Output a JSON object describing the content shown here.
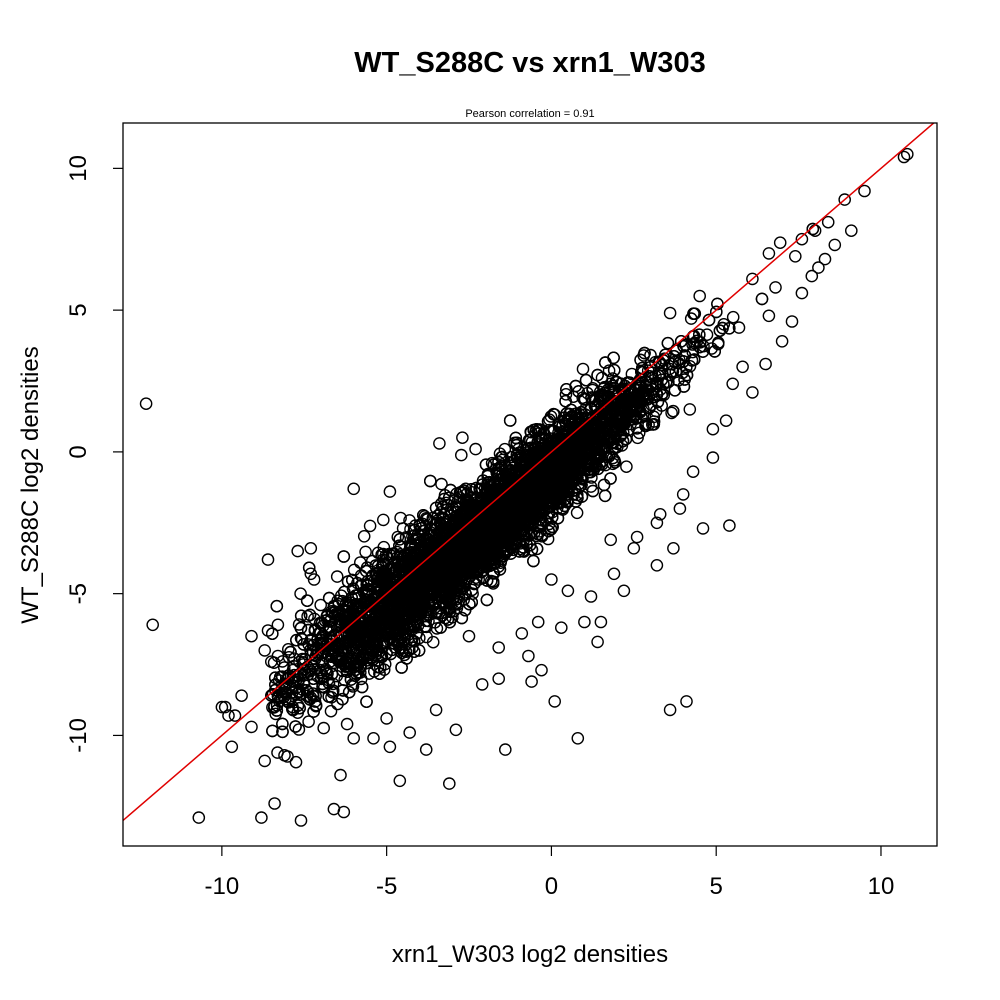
{
  "chart_data": {
    "type": "scatter",
    "title": "WT_S288C vs xrn1_W303",
    "subtitle": "Pearson correlation =  0.91",
    "xlabel": "xrn1_W303 log2 densities",
    "ylabel": "WT_S288C log2 densities",
    "xlim": [
      -13.0,
      11.7
    ],
    "ylim": [
      -13.9,
      11.6
    ],
    "xticks": [
      -10,
      -5,
      0,
      5,
      10
    ],
    "yticks": [
      -10,
      -5,
      0,
      5,
      10
    ],
    "xtick_labels": [
      "-10",
      "-5",
      "0",
      "5",
      "10"
    ],
    "ytick_labels": [
      "-10",
      "-5",
      "0",
      "5",
      "10"
    ],
    "grid": false,
    "legend": "none",
    "marker": "open-circle",
    "marker_color": "#000000",
    "reference_line": {
      "type": "identity",
      "slope": 1,
      "intercept": 0,
      "color": "#e00000"
    },
    "dense_cloud": {
      "description_values": "approximate main body of points along x≈y, slightly below the identity line",
      "centerline": [
        [
          -7.0,
          -7.3
        ],
        [
          -5.0,
          -5.5
        ],
        [
          -3.0,
          -3.6
        ],
        [
          -1.0,
          -1.7
        ],
        [
          1.0,
          0.2
        ],
        [
          3.0,
          2.2
        ],
        [
          5.0,
          4.4
        ],
        [
          7.0,
          6.7
        ],
        [
          8.5,
          8.3
        ]
      ],
      "n_points": 6500
    },
    "points": [
      [
        -12.3,
        1.7
      ],
      [
        -12.1,
        -6.1
      ],
      [
        -10.7,
        -12.9
      ],
      [
        -8.8,
        -12.9
      ],
      [
        -8.4,
        -12.4
      ],
      [
        -7.6,
        -13.0
      ],
      [
        -6.6,
        -12.6
      ],
      [
        -6.3,
        -12.7
      ],
      [
        -6.4,
        -11.4
      ],
      [
        -4.6,
        -11.6
      ],
      [
        -3.1,
        -11.7
      ],
      [
        -1.4,
        -10.5
      ],
      [
        -9.7,
        -10.4
      ],
      [
        -8.7,
        -10.9
      ],
      [
        -8.1,
        -10.7
      ],
      [
        -9.9,
        -9.0
      ],
      [
        -9.6,
        -9.3
      ],
      [
        -9.1,
        -9.7
      ],
      [
        -8.6,
        -3.8
      ],
      [
        -7.7,
        -3.5
      ],
      [
        -7.3,
        -3.4
      ],
      [
        -7.3,
        -4.3
      ],
      [
        -7.2,
        -4.5
      ],
      [
        -8.6,
        -6.3
      ],
      [
        -8.3,
        -6.1
      ],
      [
        -9.1,
        -6.5
      ],
      [
        -4.9,
        -1.4
      ],
      [
        -6.0,
        -1.3
      ],
      [
        -4.5,
        -2.7
      ],
      [
        -5.1,
        -2.4
      ],
      [
        -3.4,
        0.3
      ],
      [
        -2.7,
        0.5
      ],
      [
        -2.3,
        0.1
      ],
      [
        -8.1,
        -8.2
      ],
      [
        -8.5,
        -7.4
      ],
      [
        -8.0,
        -8.8
      ],
      [
        -6.0,
        -10.1
      ],
      [
        -5.4,
        -10.1
      ],
      [
        -4.9,
        -10.4
      ],
      [
        -4.3,
        -9.9
      ],
      [
        -3.8,
        -10.5
      ],
      [
        -2.9,
        -9.8
      ],
      [
        0.1,
        -8.8
      ],
      [
        0.8,
        -10.1
      ],
      [
        3.6,
        -9.1
      ],
      [
        4.1,
        -8.8
      ],
      [
        -0.3,
        -7.7
      ],
      [
        -0.6,
        -8.1
      ],
      [
        1.5,
        -6.0
      ],
      [
        1.4,
        -6.7
      ],
      [
        3.2,
        -4.0
      ],
      [
        2.2,
        -4.9
      ],
      [
        3.7,
        -3.4
      ],
      [
        4.6,
        -2.7
      ],
      [
        5.4,
        -2.6
      ],
      [
        3.2,
        -2.5
      ],
      [
        3.9,
        -2.0
      ],
      [
        2.5,
        -3.4
      ],
      [
        1.8,
        -3.1
      ],
      [
        -1.6,
        -6.9
      ],
      [
        -2.5,
        -6.5
      ],
      [
        -0.9,
        -6.4
      ],
      [
        -0.4,
        -6.0
      ],
      [
        1.0,
        -6.0
      ],
      [
        0.5,
        -4.9
      ],
      [
        0.0,
        -4.5
      ],
      [
        4.9,
        0.8
      ],
      [
        4.2,
        1.5
      ],
      [
        5.5,
        2.4
      ],
      [
        5.8,
        3.0
      ],
      [
        6.6,
        4.8
      ],
      [
        6.8,
        5.8
      ],
      [
        7.4,
        6.9
      ],
      [
        7.9,
        6.2
      ],
      [
        8.3,
        6.8
      ],
      [
        8.0,
        7.8
      ],
      [
        8.9,
        8.9
      ],
      [
        9.5,
        9.2
      ],
      [
        10.7,
        10.4
      ],
      [
        10.8,
        10.5
      ],
      [
        8.4,
        8.1
      ],
      [
        7.6,
        7.5
      ],
      [
        6.1,
        6.1
      ],
      [
        6.6,
        7.0
      ],
      [
        4.5,
        5.5
      ],
      [
        3.6,
        4.9
      ],
      [
        2.8,
        3.4
      ],
      [
        1.8,
        2.4
      ],
      [
        1.2,
        1.5
      ],
      [
        0.4,
        1.1
      ],
      [
        -0.2,
        0.6
      ],
      [
        -1.0,
        0.1
      ],
      [
        -1.8,
        -0.4
      ],
      [
        -2.6,
        -1.3
      ],
      [
        -3.2,
        -1.8
      ],
      [
        -4.0,
        -2.6
      ],
      [
        -5.1,
        -3.6
      ],
      [
        -5.8,
        -3.9
      ],
      [
        -6.5,
        -4.4
      ],
      [
        -7.0,
        -5.4
      ],
      [
        -7.4,
        -5.8
      ],
      [
        -8.3,
        -7.2
      ],
      [
        -8.7,
        -7.0
      ],
      [
        -9.4,
        -8.6
      ],
      [
        -10.0,
        -9.0
      ],
      [
        -9.8,
        -9.3
      ],
      [
        -7.7,
        -9.2
      ],
      [
        -6.2,
        -9.6
      ],
      [
        -5.0,
        -9.4
      ],
      [
        -3.5,
        -9.1
      ],
      [
        -2.1,
        -8.2
      ],
      [
        -1.6,
        -8.0
      ],
      [
        -0.7,
        -7.2
      ],
      [
        0.3,
        -6.2
      ],
      [
        1.2,
        -5.1
      ],
      [
        1.9,
        -4.3
      ],
      [
        2.6,
        -3.0
      ],
      [
        3.3,
        -2.2
      ],
      [
        4.0,
        -1.5
      ],
      [
        4.3,
        -0.7
      ],
      [
        4.9,
        -0.2
      ],
      [
        5.3,
        1.1
      ],
      [
        6.1,
        2.1
      ],
      [
        6.5,
        3.1
      ],
      [
        7.0,
        3.9
      ],
      [
        7.3,
        4.6
      ],
      [
        7.6,
        5.6
      ],
      [
        8.1,
        6.5
      ],
      [
        8.6,
        7.3
      ],
      [
        9.1,
        7.8
      ]
    ]
  }
}
